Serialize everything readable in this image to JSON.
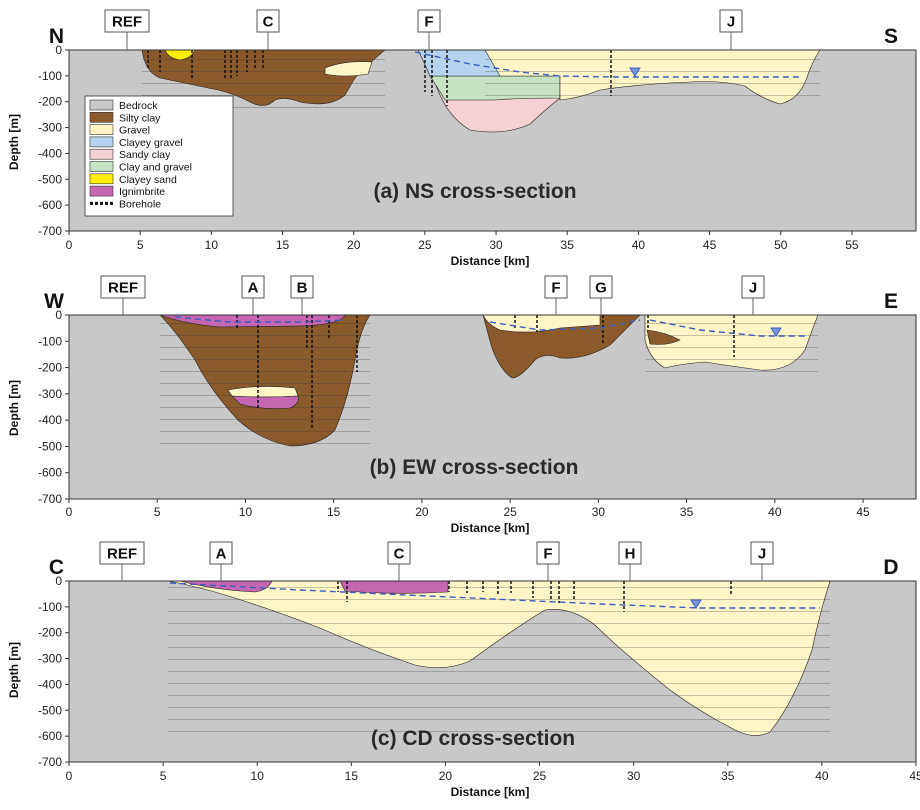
{
  "colors": {
    "Bedrock": "#c8c8c8",
    "Silty clay": "#8b5a2b",
    "Gravel": "#fff6c8",
    "Clayey gravel": "#b8d3ee",
    "Sandy clay": "#f4d2d4",
    "Clay and gravel": "#c7e2c2",
    "Clayey sand": "#ffee00",
    "Ignimbrite": "#c567b0",
    "water_table": "#3a5fbf"
  },
  "legend": [
    "Bedrock",
    "Silty clay",
    "Gravel",
    "Clayey gravel",
    "Sandy clay",
    "Clay and gravel",
    "Clayey sand",
    "Ignimbrite",
    "Borehole"
  ],
  "y_axis_title": "Depth [m]",
  "x_axis_title": "Distance  [km]",
  "sections": [
    {
      "title": "(a) NS cross-section",
      "left_letter": "N",
      "right_letter": "S",
      "x_ticks": [
        "0",
        "5",
        "10",
        "15",
        "20",
        "25",
        "30",
        "35",
        "40",
        "45",
        "50",
        "55"
      ],
      "y_ticks": [
        "0",
        "-100",
        "-200",
        "-300",
        "-400",
        "-500",
        "-600",
        "-700"
      ],
      "labels": [
        "REF",
        "C",
        "F",
        "J"
      ]
    },
    {
      "title": "(b) EW cross-section",
      "left_letter": "W",
      "right_letter": "E",
      "x_ticks": [
        "0",
        "5",
        "10",
        "15",
        "20",
        "25",
        "30",
        "35",
        "40",
        "45"
      ],
      "y_ticks": [
        "0",
        "-100",
        "-200",
        "-300",
        "-400",
        "-500",
        "-600",
        "-700"
      ],
      "labels": [
        "REF",
        "A",
        "B",
        "F",
        "G",
        "J"
      ]
    },
    {
      "title": "(c) CD cross-section",
      "left_letter": "C",
      "right_letter": "D",
      "x_ticks": [
        "0",
        "5",
        "10",
        "15",
        "20",
        "25",
        "30",
        "35",
        "40",
        "45"
      ],
      "y_ticks": [
        "0",
        "-100",
        "-200",
        "-300",
        "-400",
        "-500",
        "-600",
        "-700"
      ],
      "labels": [
        "REF",
        "A",
        "C",
        "F",
        "H",
        "J"
      ]
    }
  ]
}
